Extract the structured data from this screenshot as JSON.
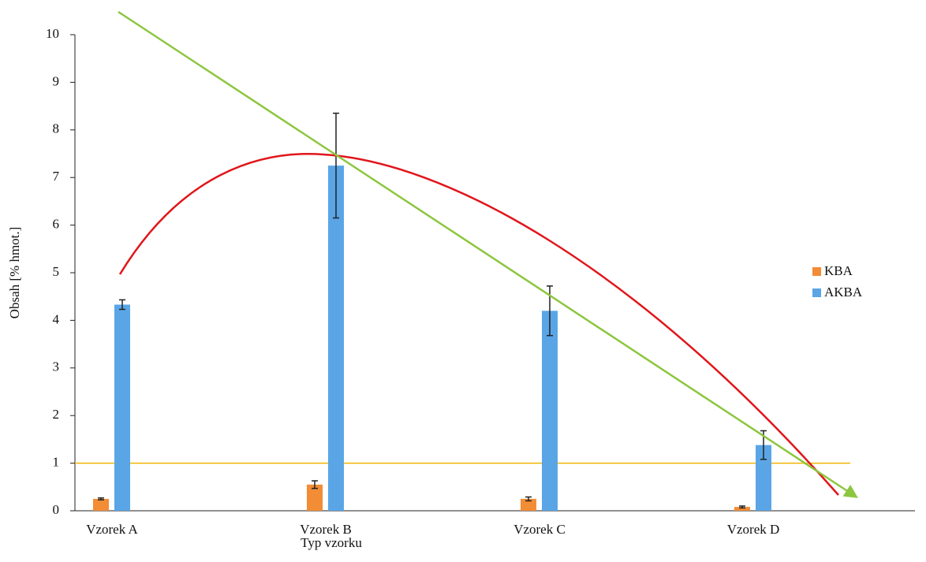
{
  "chart_data": {
    "type": "bar",
    "x_label": "Typ vzorku",
    "y_label": "Obsah [% hmot.]",
    "categories": [
      "Vzorek A",
      "Vzorek B",
      "Vzorek C",
      "Vzorek D"
    ],
    "series": [
      {
        "name": "KBA",
        "color": "#f28c35",
        "values": [
          0.25,
          0.55,
          0.25,
          0.08
        ],
        "errors": [
          0.02,
          0.08,
          0.04,
          0.02
        ]
      },
      {
        "name": "AKBA",
        "color": "#5aa5e6",
        "values": [
          4.33,
          7.25,
          4.2,
          1.38
        ],
        "errors": [
          0.1,
          1.1,
          0.52,
          0.3
        ]
      }
    ],
    "ylim": [
      0,
      10
    ],
    "yticks": [
      0,
      1,
      2,
      3,
      4,
      5,
      6,
      7,
      8,
      9,
      10
    ],
    "reference_line": {
      "value": 1,
      "color": "#f0b400"
    },
    "legend": "right"
  }
}
